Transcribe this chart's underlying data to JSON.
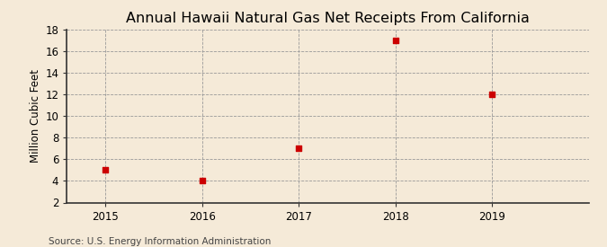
{
  "title": "Annual Hawaii Natural Gas Net Receipts From California",
  "ylabel": "Million Cubic Feet",
  "source": "Source: U.S. Energy Information Administration",
  "years": [
    2015,
    2016,
    2017,
    2018,
    2019
  ],
  "values": [
    5,
    4,
    7,
    17,
    12
  ],
  "marker_color": "#cc0000",
  "marker_size": 4,
  "background_color": "#f5ead8",
  "grid_color": "#999999",
  "ylim": [
    2,
    18
  ],
  "yticks": [
    2,
    4,
    6,
    8,
    10,
    12,
    14,
    16,
    18
  ],
  "xlim": [
    2014.6,
    2020.0
  ],
  "title_fontsize": 11.5,
  "ylabel_fontsize": 8.5,
  "tick_fontsize": 8.5,
  "source_fontsize": 7.5
}
